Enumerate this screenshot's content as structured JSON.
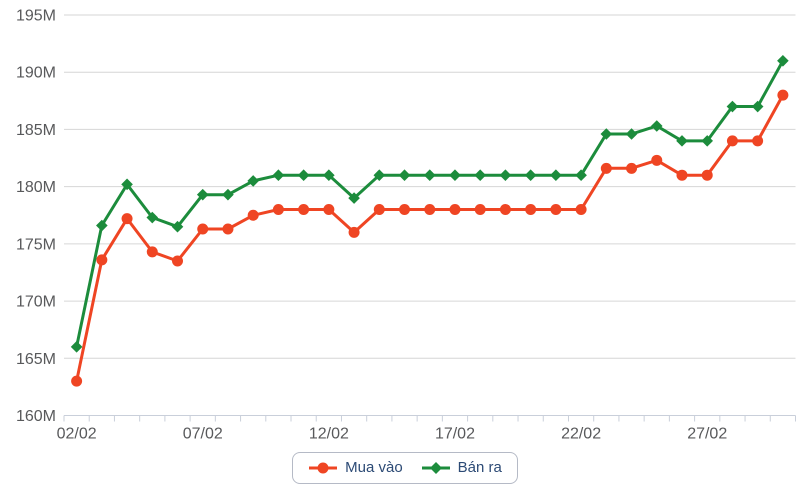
{
  "chart_data": {
    "type": "line",
    "title": "",
    "categories": [
      "02/02",
      "03/02",
      "04/02",
      "05/02",
      "06/02",
      "07/02",
      "08/02",
      "09/02",
      "10/02",
      "11/02",
      "12/02",
      "13/02",
      "14/02",
      "15/02",
      "16/02",
      "17/02",
      "18/02",
      "19/02",
      "20/02",
      "21/02",
      "22/02",
      "23/02",
      "24/02",
      "25/02",
      "26/02",
      "27/02",
      "28/02",
      "01/03",
      "02/03"
    ],
    "x_axis_tick_labels": [
      "02/02",
      "07/02",
      "12/02",
      "17/02",
      "22/02",
      "27/02"
    ],
    "x_axis_tick_label_indices": [
      0,
      5,
      10,
      15,
      20,
      25
    ],
    "y_axis_tick_labels": [
      "195M",
      "190M",
      "185M",
      "180M",
      "175M",
      "170M",
      "165M",
      "160M"
    ],
    "ylim": [
      160,
      195
    ],
    "y_tick_step": 5,
    "y_unit": "M",
    "grid": true,
    "legend_position": "bottom",
    "series": [
      {
        "name": "Mua vào",
        "marker": "circle",
        "color": "#ef4523",
        "values": [
          163.0,
          173.6,
          177.2,
          174.3,
          173.5,
          176.3,
          176.3,
          177.5,
          178.0,
          178.0,
          178.0,
          176.0,
          178.0,
          178.0,
          178.0,
          178.0,
          178.0,
          178.0,
          178.0,
          178.0,
          178.0,
          181.6,
          181.6,
          182.3,
          181.0,
          181.0,
          184.0,
          184.0,
          188.0
        ]
      },
      {
        "name": "Bán ra",
        "marker": "diamond",
        "color": "#1c8c3c",
        "values": [
          166.0,
          176.6,
          180.2,
          177.3,
          176.5,
          179.3,
          179.3,
          180.5,
          181.0,
          181.0,
          181.0,
          179.0,
          181.0,
          181.0,
          181.0,
          181.0,
          181.0,
          181.0,
          181.0,
          181.0,
          181.0,
          184.6,
          184.6,
          185.3,
          184.0,
          184.0,
          187.0,
          187.0,
          191.0
        ]
      }
    ]
  },
  "colors": {
    "background": "#ffffff",
    "gridline": "#d6d6d6",
    "axis_line": "#c9cfda",
    "axis_label": "#58595b",
    "legend_text": "#2c4a75",
    "legend_border": "#b5bac6"
  }
}
